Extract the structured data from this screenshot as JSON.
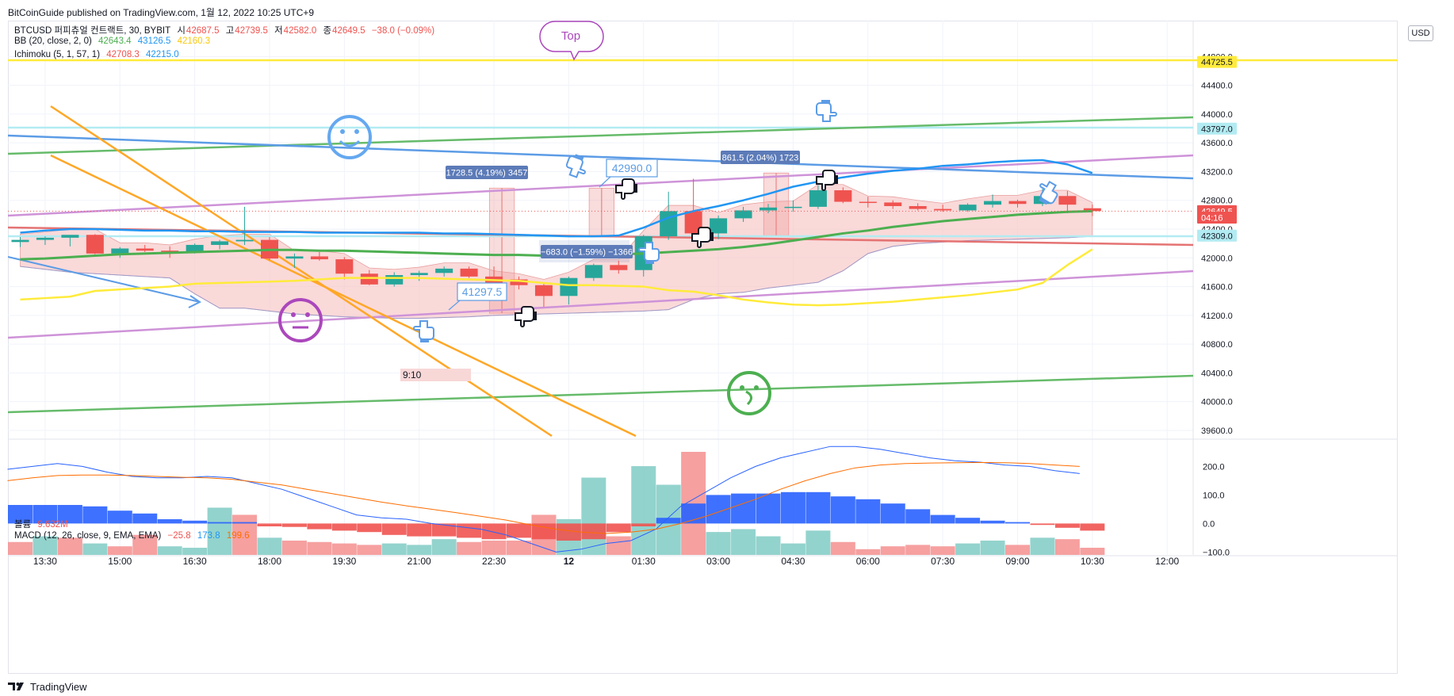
{
  "header": {
    "published": "BitCoinGuide published on TradingView.com, 1월 12, 2022 10:25 UTC+9"
  },
  "legend": {
    "symbol": "BTCUSD 퍼피츄얼 컨트랙트, 30, BYBIT",
    "o_label": "시",
    "o": "42687.5",
    "h_label": "고",
    "h": "42739.5",
    "l_label": "저",
    "l": "42582.0",
    "c_label": "종",
    "c": "42649.5",
    "change": "−38.0 (−0.09%)",
    "bb_name": "BB (20, close, 2, 0)",
    "bb_values": [
      "42643.4",
      "43126.5",
      "42160.3"
    ],
    "ichi_name": "Ichimoku (5, 1, 57, 1)",
    "ichi_values": [
      "42708.3",
      "42215.0"
    ],
    "vol_name": "볼륨",
    "vol_value": "9.632M",
    "macd_name": "MACD (12, 26, close, 9, EMA, EMA)",
    "macd_values": [
      "−25.8",
      "173.8",
      "199.6"
    ]
  },
  "currency_button": "USD",
  "footer": {
    "brand": "TradingView"
  },
  "colors": {
    "up": "#26a69a",
    "down": "#ef5350",
    "bb_basis": "#4caf50",
    "bb_upper": "#2196f3",
    "bb_lower": "#ffeb3b",
    "cloud": "#f7c5c4",
    "orange_line": "#ffa726",
    "lavender": "#ce93d8",
    "green_line": "#66bb6a",
    "blue_line": "#5c9ce6",
    "red_line": "#e57373",
    "yellow_line": "#ffeb3b",
    "macd": "#2962ff",
    "signal": "#ff6d00"
  },
  "annotations": {
    "top_bubble": "Top",
    "box1": "1728.5 (4.19%) 3457",
    "box2": "861.5 (2.04%) 1723",
    "box3": "−683.0 (−1.59%) −1366",
    "callout_high": "42990.0",
    "callout_low": "41297.5",
    "time_label": "9:10"
  },
  "chart_data": {
    "type": "candlestick",
    "interval": "30",
    "price_axis": {
      "ticks": [
        "44800.0",
        "44400.0",
        "44000.0",
        "43600.0",
        "43200.0",
        "42800.0",
        "42400.0",
        "42000.0",
        "41600.0",
        "41200.0",
        "40800.0",
        "40400.0",
        "40000.0",
        "39600.0"
      ],
      "range": [
        39500,
        45300
      ],
      "labels": [
        {
          "text": "44725.5",
          "value": 44725.5,
          "color": "#ffeb3b",
          "text_color": "#131722"
        },
        {
          "text": "43797.0",
          "value": 43797,
          "color": "#b2ebf2",
          "text_color": "#131722"
        },
        {
          "text": "42649.5",
          "value": 42649.5,
          "color": "#ef5350",
          "text_color": "#ffffff"
        },
        {
          "text": "04:16",
          "value": 42560,
          "color": "#ef5350",
          "text_color": "#ffffff"
        },
        {
          "text": "42309.0",
          "value": 42309,
          "color": "#b2ebf2",
          "text_color": "#131722"
        }
      ]
    },
    "time_axis": {
      "ticks": [
        {
          "label": "13:30",
          "x_index": 1
        },
        {
          "label": "15:00",
          "x_index": 4
        },
        {
          "label": "16:30",
          "x_index": 7
        },
        {
          "label": "18:00",
          "x_index": 10
        },
        {
          "label": "19:30",
          "x_index": 13
        },
        {
          "label": "21:00",
          "x_index": 16
        },
        {
          "label": "22:30",
          "x_index": 19
        },
        {
          "label": "12",
          "x_index": 22
        },
        {
          "label": "01:30",
          "x_index": 25
        },
        {
          "label": "03:00",
          "x_index": 28
        },
        {
          "label": "04:30",
          "x_index": 31
        },
        {
          "label": "06:00",
          "x_index": 34
        },
        {
          "label": "07:30",
          "x_index": 37
        },
        {
          "label": "09:00",
          "x_index": 40
        },
        {
          "label": "10:30",
          "x_index": 43
        },
        {
          "label": "12:00",
          "x_index": 46
        }
      ]
    },
    "candles": [
      [
        42220,
        42290,
        42150,
        42250
      ],
      [
        42250,
        42300,
        42180,
        42280
      ],
      [
        42280,
        42310,
        42160,
        42320
      ],
      [
        42320,
        42330,
        42050,
        42060
      ],
      [
        42060,
        42150,
        42000,
        42130
      ],
      [
        42130,
        42180,
        42080,
        42100
      ],
      [
        42100,
        42160,
        42000,
        42090
      ],
      [
        42090,
        42200,
        42060,
        42180
      ],
      [
        42180,
        42250,
        42120,
        42230
      ],
      [
        42230,
        42710,
        42180,
        42250
      ],
      [
        42250,
        42290,
        41970,
        41990
      ],
      [
        41990,
        42060,
        41860,
        42020
      ],
      [
        42020,
        42080,
        41960,
        41980
      ],
      [
        41980,
        42010,
        41700,
        41780
      ],
      [
        41780,
        41830,
        41620,
        41630
      ],
      [
        41630,
        41800,
        41600,
        41760
      ],
      [
        41760,
        41820,
        41680,
        41790
      ],
      [
        41790,
        41880,
        41740,
        41850
      ],
      [
        41850,
        41880,
        41720,
        41740
      ],
      [
        41740,
        41880,
        41620,
        41620
      ],
      [
        41700,
        41740,
        41560,
        41620
      ],
      [
        41620,
        41640,
        41320,
        41470
      ],
      [
        41470,
        41740,
        41350,
        41720
      ],
      [
        41720,
        41920,
        41680,
        41900
      ],
      [
        41900,
        41960,
        41780,
        41830
      ],
      [
        41830,
        42320,
        41740,
        42300
      ],
      [
        42300,
        42920,
        42250,
        42650
      ],
      [
        42650,
        43100,
        42330,
        42340
      ],
      [
        42340,
        42590,
        42260,
        42550
      ],
      [
        42550,
        42710,
        42500,
        42660
      ],
      [
        42660,
        42750,
        42620,
        42700
      ],
      [
        42700,
        42800,
        42640,
        42710
      ],
      [
        42710,
        43010,
        42680,
        42940
      ],
      [
        42940,
        42980,
        42760,
        42780
      ],
      [
        42780,
        42850,
        42700,
        42770
      ],
      [
        42770,
        42800,
        42680,
        42720
      ],
      [
        42720,
        42760,
        42660,
        42680
      ],
      [
        42680,
        42740,
        42640,
        42660
      ],
      [
        42660,
        42760,
        42640,
        42740
      ],
      [
        42740,
        42880,
        42700,
        42790
      ],
      [
        42790,
        42810,
        42700,
        42750
      ],
      [
        42750,
        42960,
        42720,
        42860
      ],
      [
        42860,
        42930,
        42620,
        42740
      ],
      [
        42690,
        42740,
        42580,
        42650
      ]
    ],
    "volume": [
      {
        "v": 0.9,
        "up": false
      },
      {
        "v": 1.3,
        "up": true
      },
      {
        "v": 1.2,
        "up": false
      },
      {
        "v": 0.8,
        "up": true
      },
      {
        "v": 0.6,
        "up": false
      },
      {
        "v": 1.4,
        "up": false
      },
      {
        "v": 0.6,
        "up": true
      },
      {
        "v": 0.5,
        "up": true
      },
      {
        "v": 3.3,
        "up": true
      },
      {
        "v": 2.8,
        "up": false
      },
      {
        "v": 1.2,
        "up": true
      },
      {
        "v": 1.0,
        "up": false
      },
      {
        "v": 0.9,
        "up": false
      },
      {
        "v": 0.8,
        "up": false
      },
      {
        "v": 0.7,
        "up": false
      },
      {
        "v": 0.8,
        "up": true
      },
      {
        "v": 0.7,
        "up": true
      },
      {
        "v": 1.1,
        "up": true
      },
      {
        "v": 0.9,
        "up": false
      },
      {
        "v": 1.0,
        "up": false
      },
      {
        "v": 1.0,
        "up": false
      },
      {
        "v": 2.8,
        "up": false
      },
      {
        "v": 2.5,
        "up": true
      },
      {
        "v": 5.4,
        "up": true
      },
      {
        "v": 1.3,
        "up": false
      },
      {
        "v": 6.2,
        "up": true
      },
      {
        "v": 4.9,
        "up": true
      },
      {
        "v": 7.2,
        "up": false
      },
      {
        "v": 1.6,
        "up": true
      },
      {
        "v": 1.8,
        "up": true
      },
      {
        "v": 1.3,
        "up": true
      },
      {
        "v": 0.8,
        "up": true
      },
      {
        "v": 1.7,
        "up": true
      },
      {
        "v": 0.9,
        "up": false
      },
      {
        "v": 0.4,
        "up": false
      },
      {
        "v": 0.6,
        "up": false
      },
      {
        "v": 0.7,
        "up": false
      },
      {
        "v": 0.6,
        "up": false
      },
      {
        "v": 0.8,
        "up": true
      },
      {
        "v": 1.0,
        "up": true
      },
      {
        "v": 0.7,
        "up": false
      },
      {
        "v": 1.2,
        "up": true
      },
      {
        "v": 1.1,
        "up": false
      },
      {
        "v": 0.5,
        "up": false
      }
    ],
    "macd_histogram": [
      65,
      65,
      65,
      60,
      45,
      35,
      15,
      10,
      5,
      5,
      -10,
      -12,
      -20,
      -25,
      -30,
      -40,
      -45,
      -45,
      -50,
      -55,
      -50,
      -55,
      -60,
      -55,
      -30,
      -10,
      20,
      70,
      100,
      105,
      105,
      110,
      110,
      95,
      85,
      70,
      50,
      30,
      20,
      10,
      5,
      -5,
      -15,
      -25
    ],
    "macd_line": [
      190,
      200,
      210,
      200,
      180,
      165,
      160,
      160,
      165,
      160,
      140,
      120,
      90,
      60,
      30,
      20,
      15,
      0,
      -10,
      -20,
      -40,
      -70,
      -100,
      -90,
      -70,
      -60,
      -20,
      60,
      110,
      160,
      200,
      230,
      250,
      270,
      270,
      260,
      245,
      230,
      220,
      215,
      205,
      200,
      185,
      175
    ],
    "signal_line": [
      150,
      160,
      168,
      170,
      170,
      168,
      165,
      162,
      160,
      155,
      145,
      135,
      120,
      105,
      90,
      75,
      62,
      50,
      38,
      25,
      12,
      -5,
      -20,
      -30,
      -35,
      -30,
      -20,
      0,
      25,
      55,
      85,
      120,
      150,
      175,
      195,
      205,
      210,
      212,
      213,
      214,
      213,
      210,
      205,
      200
    ],
    "macd_axis": {
      "ticks": [
        "200.0",
        "100.0",
        "0.0",
        "−100.0"
      ],
      "range": [
        -110,
        290
      ]
    }
  }
}
